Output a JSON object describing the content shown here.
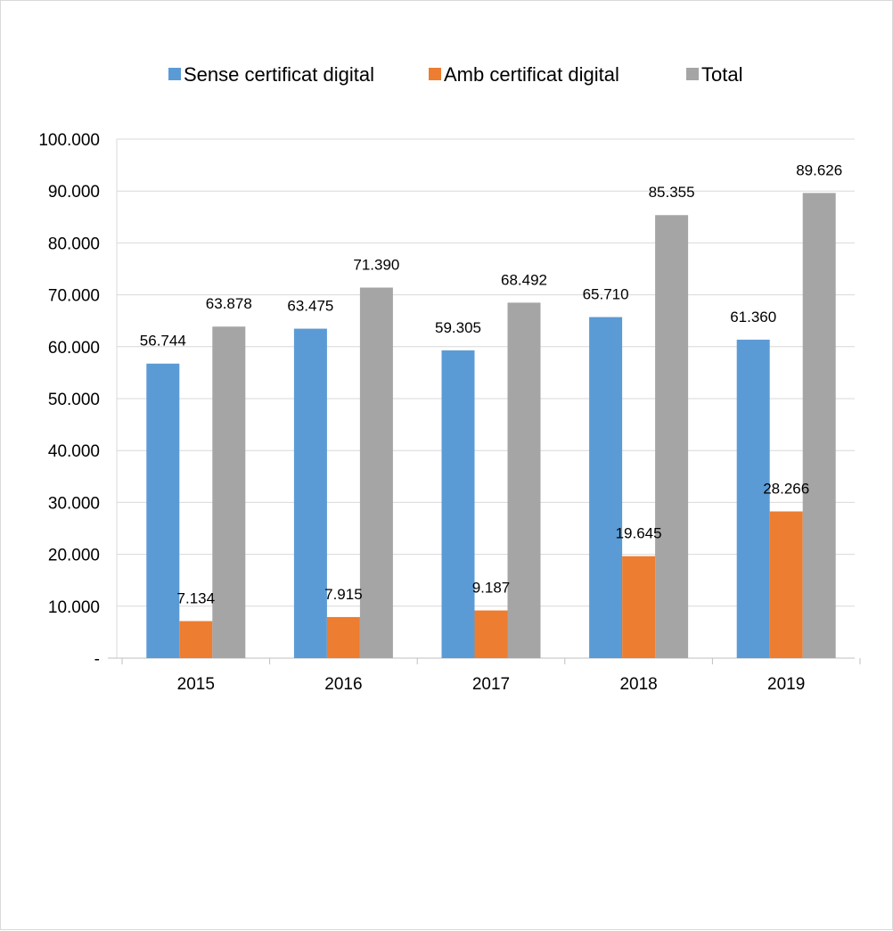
{
  "chart_data": {
    "type": "bar",
    "title": "",
    "xlabel": "",
    "ylabel": "",
    "categories": [
      "2015",
      "2016",
      "2017",
      "2018",
      "2019"
    ],
    "series": [
      {
        "name": "Sense certificat digital",
        "color": "#5b9bd5",
        "values": [
          56744,
          63475,
          59305,
          65710,
          61360
        ],
        "labels": [
          "56.744",
          "63.475",
          "59.305",
          "65.710",
          "61.360"
        ]
      },
      {
        "name": "Amb certificat digital",
        "color": "#ed7d31",
        "values": [
          7134,
          7915,
          9187,
          19645,
          28266
        ],
        "labels": [
          "7.134",
          "7.915",
          "9.187",
          "19.645",
          "28.266"
        ]
      },
      {
        "name": "Total",
        "color": "#a5a5a5",
        "values": [
          63878,
          71390,
          68492,
          85355,
          89626
        ],
        "labels": [
          "63.878",
          "71.390",
          "68.492",
          "85.355",
          "89.626"
        ]
      }
    ],
    "ylim": [
      0,
      100000
    ],
    "yticks": [
      0,
      10000,
      20000,
      30000,
      40000,
      50000,
      60000,
      70000,
      80000,
      90000,
      100000
    ],
    "ytick_labels": [
      "-",
      "10.000",
      "20.000",
      "30.000",
      "40.000",
      "50.000",
      "60.000",
      "70.000",
      "80.000",
      "90.000",
      "100.000"
    ],
    "grid": true,
    "legend_position": "top"
  }
}
